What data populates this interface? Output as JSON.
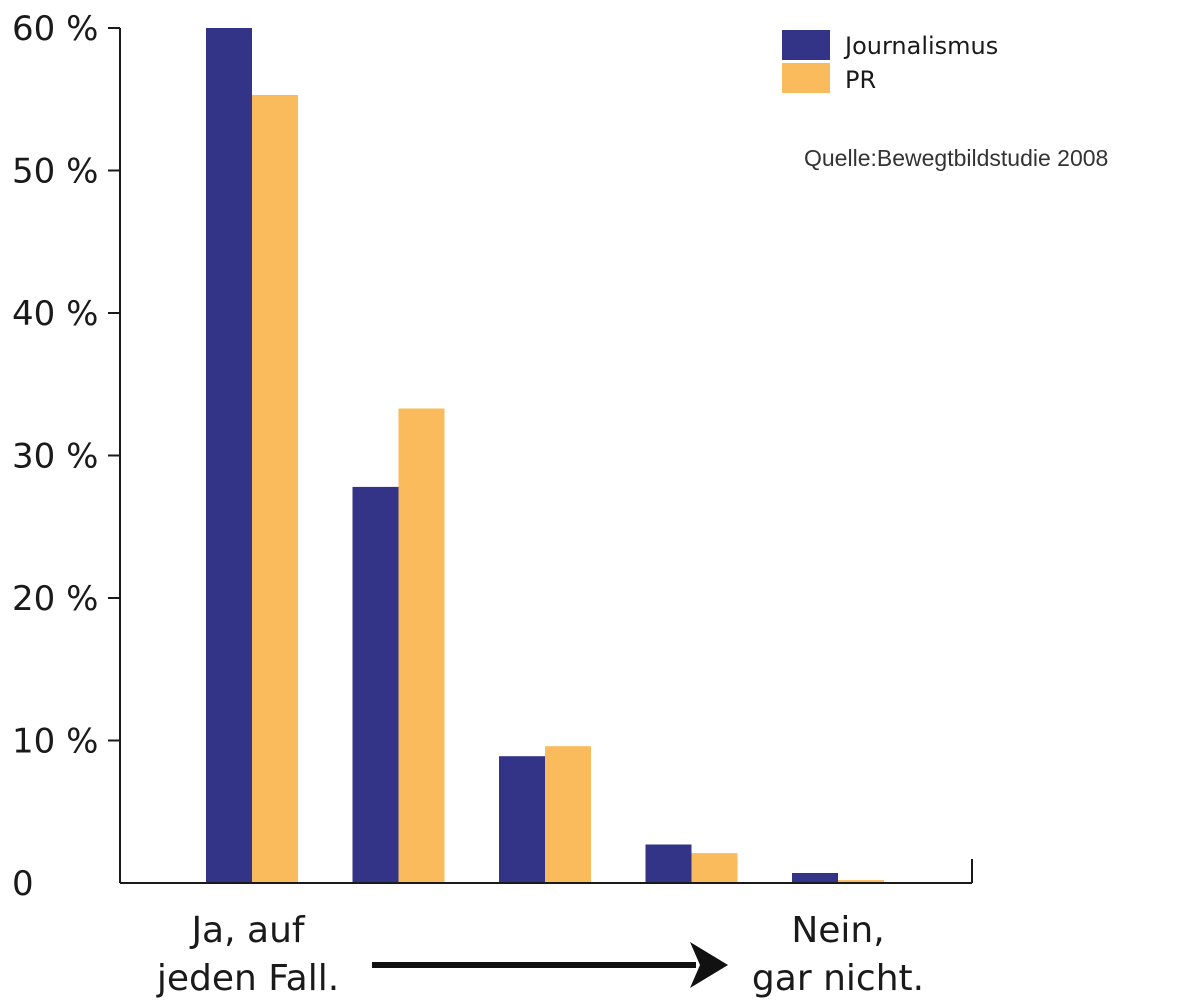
{
  "chart_data": {
    "type": "bar",
    "categories": [
      "",
      "",
      "",
      "",
      ""
    ],
    "series": [
      {
        "name": "Journalismus",
        "color": "#333388",
        "values": [
          60,
          27.8,
          8.9,
          2.7,
          0.7
        ]
      },
      {
        "name": "PR",
        "color": "#f9bb5c",
        "values": [
          55.3,
          33.3,
          9.6,
          2.1,
          0.2
        ]
      }
    ],
    "ylim": [
      0,
      60
    ],
    "yticks": [
      {
        "value": 0,
        "label": "0"
      },
      {
        "value": 10,
        "label": "10 %"
      },
      {
        "value": 20,
        "label": "20 %"
      },
      {
        "value": 30,
        "label": "30 %"
      },
      {
        "value": 40,
        "label": "40 %"
      },
      {
        "value": 50,
        "label": "50 %"
      },
      {
        "value": 60,
        "label": "60 %"
      }
    ],
    "x_scale_start": [
      "Ja, auf",
      "jeden Fall."
    ],
    "x_scale_end": [
      "Nein,",
      "gar nicht."
    ],
    "source": "Quelle:Bewegtbildstudie 2008",
    "legend_position": "top-right",
    "grid": false
  }
}
